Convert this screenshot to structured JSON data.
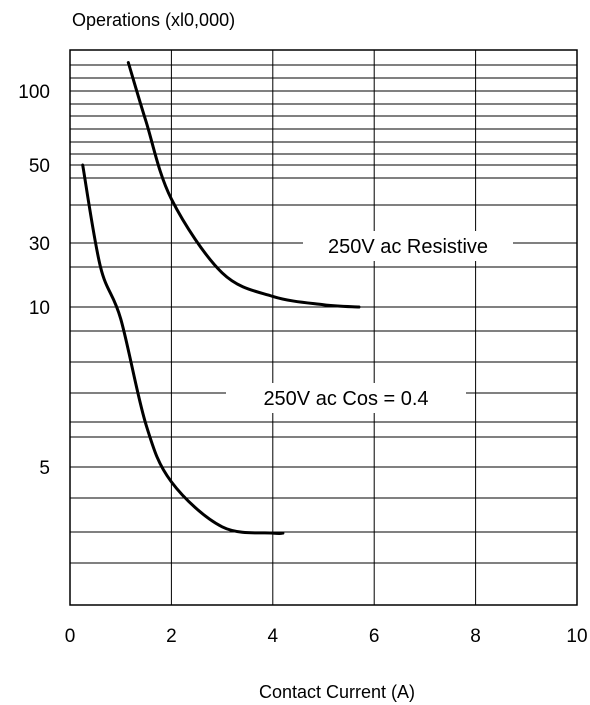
{
  "chart_data": {
    "type": "line",
    "ylabel": "Operations (xl0,000)",
    "xlabel": "Contact Current (A)",
    "x_ticks": [
      "0",
      "2",
      "4",
      "6",
      "8",
      "10"
    ],
    "y_ticks": [
      {
        "label": "100",
        "value": 100
      },
      {
        "label": "50",
        "value": 50
      },
      {
        "label": "30",
        "value": 30
      },
      {
        "label": "10",
        "value": 10
      },
      {
        "label": "5",
        "value": 5
      }
    ],
    "xlim": [
      0,
      10
    ],
    "grid": true,
    "series": [
      {
        "name": "250V ac Resistive",
        "color": "#000000",
        "points": [
          [
            1.15,
            120
          ],
          [
            1.5,
            75
          ],
          [
            2,
            40
          ],
          [
            3,
            18
          ],
          [
            4,
            12
          ],
          [
            5,
            10.4
          ],
          [
            5.7,
            10
          ]
        ]
      },
      {
        "name": "250V ac Cos = 0.4",
        "color": "#000000",
        "points": [
          [
            0.25,
            50
          ],
          [
            0.6,
            20
          ],
          [
            1,
            9.5
          ],
          [
            1.5,
            6
          ],
          [
            2,
            4.7
          ],
          [
            3,
            3.9
          ],
          [
            4,
            3.8
          ],
          [
            4.2,
            3.8
          ]
        ]
      }
    ]
  }
}
